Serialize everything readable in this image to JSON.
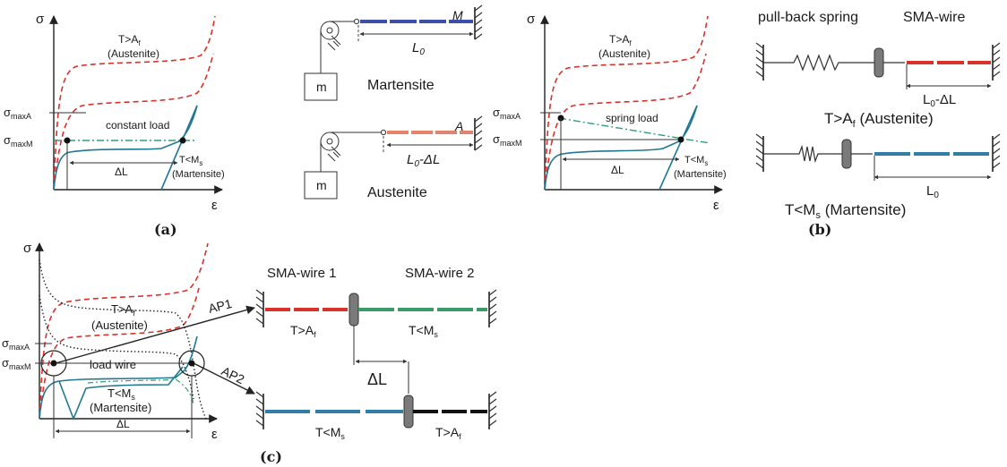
{
  "colors": {
    "austenite_curve": "#d9302a",
    "martensite_curve": "#1f7792",
    "load_line": "#2e9e7a",
    "wire_red": "#d9302a",
    "wire_blue": "#2f7fa6",
    "wire_green": "#3a9a6a",
    "wire_black": "#111111",
    "mass_wire_blue": "#3d4fa8",
    "mass_wire_red": "#e5826a",
    "dotted": "#222222"
  },
  "panel_a": {
    "label": "(a)",
    "plot": {
      "y_axis": "σ",
      "x_axis": "ε",
      "level_a": "σ",
      "level_a_sub": "maxA",
      "level_m": "σ",
      "level_m_sub": "maxM",
      "aust_label_1": "T>A",
      "aust_label_1_sub": "f",
      "aust_label_2": "(Austenite)",
      "load_label": "constant load",
      "delta": "ΔL",
      "mart_label_1": "T<M",
      "mart_label_1_sub": "s",
      "mart_label_2": "(Martensite)"
    },
    "mass_diagram": {
      "top_wire_label": "M",
      "top_length_label": "L",
      "top_length_sub": "0",
      "top_mass": "m",
      "top_state": "Martensite",
      "bottom_wire_label": "A",
      "bottom_length_label": "L",
      "bottom_length_sub": "0",
      "bottom_length_rest": "-ΔL",
      "bottom_mass": "m",
      "bottom_state": "Austenite"
    }
  },
  "panel_b": {
    "label": "(b)",
    "plot": {
      "y_axis": "σ",
      "x_axis": "ε",
      "level_a": "σ",
      "level_a_sub": "maxA",
      "level_m": "σ",
      "level_m_sub": "maxM",
      "aust_label_1": "T>A",
      "aust_label_1_sub": "f",
      "aust_label_2": "(Austenite)",
      "load_label": "spring load",
      "delta": "ΔL",
      "mart_label_1": "T<M",
      "mart_label_1_sub": "s",
      "mart_label_2": "(Martensite)"
    },
    "spring_diagram": {
      "spring_title": "pull-back spring",
      "wire_title": "SMA-wire",
      "top_length": "L",
      "top_length_sub": "0",
      "top_length_rest": "-ΔL",
      "top_state": "T>A",
      "top_state_sub": "f",
      "top_state_rest": " (Austenite)",
      "bottom_length": "L",
      "bottom_length_sub": "0",
      "bottom_state": "T<M",
      "bottom_state_sub": "s",
      "bottom_state_rest": " (Martensite)"
    }
  },
  "panel_c": {
    "label": "(c)",
    "plot": {
      "y_axis": "σ",
      "x_axis": "ε",
      "level_a": "σ",
      "level_a_sub": "maxA",
      "level_m": "σ",
      "level_m_sub": "maxM",
      "aust_label_1": "T>A",
      "aust_label_1_sub": "f",
      "aust_label_2": "(Austenite)",
      "load_label": "load wire",
      "mart_label_1": "T<M",
      "mart_label_1_sub": "s",
      "mart_label_2": "(Martensite)",
      "delta": "ΔL",
      "ap1": "AP1",
      "ap2": "AP2"
    },
    "antagonistic_diagram": {
      "wire1_title": "SMA-wire 1",
      "wire2_title": "SMA-wire 2",
      "top_left_state": "T>A",
      "top_left_sub": "f",
      "top_right_state": "T<M",
      "top_right_sub": "s",
      "delta": "ΔL",
      "bottom_left_state": "T<M",
      "bottom_left_sub": "s",
      "bottom_right_state": "T>A",
      "bottom_right_sub": "f"
    }
  }
}
